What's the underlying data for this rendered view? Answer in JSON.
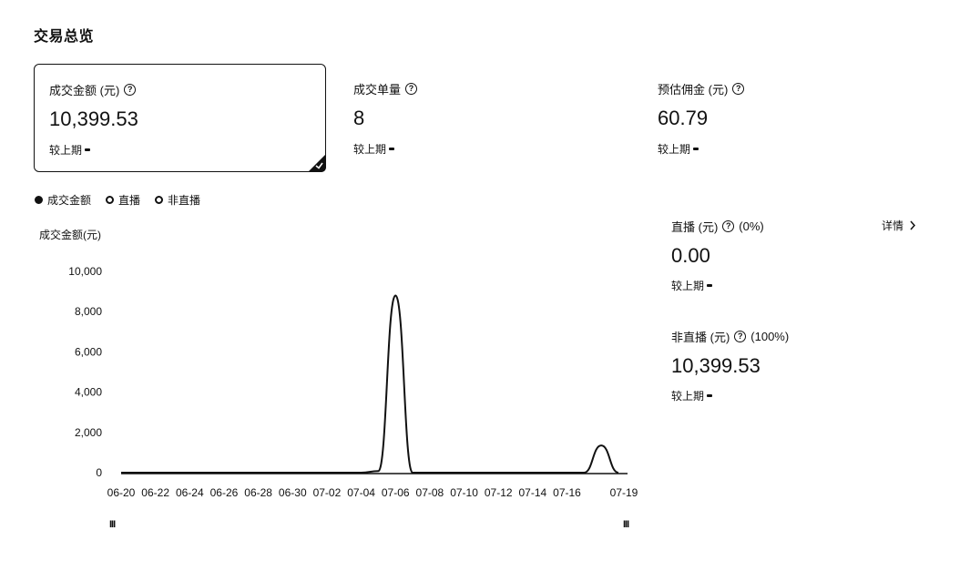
{
  "page_title": "交易总览",
  "metrics": [
    {
      "label": "成交金额 (元)",
      "value": "10,399.53",
      "compare": "较上期",
      "selected": true
    },
    {
      "label": "成交单量",
      "value": "8",
      "compare": "较上期",
      "selected": false
    },
    {
      "label": "预估佣金 (元)",
      "value": "60.79",
      "compare": "较上期",
      "selected": false
    }
  ],
  "help_glyph": "?",
  "legend": [
    {
      "label": "成交金额",
      "filled": true
    },
    {
      "label": "直播",
      "filled": false
    },
    {
      "label": "非直播",
      "filled": false
    }
  ],
  "breakdown": {
    "detail_label": "详情",
    "live": {
      "label": "直播 (元)",
      "percent": "(0%)",
      "value": "0.00",
      "compare": "较上期"
    },
    "non_live": {
      "label": "非直播 (元)",
      "percent": "(100%)",
      "value": "10,399.53",
      "compare": "较上期"
    }
  },
  "slider": {
    "left_handle": "III",
    "right_handle": "III"
  },
  "chart_data": {
    "type": "area",
    "ylabel": "成交金额(元)",
    "ylim": [
      0,
      10000
    ],
    "yticks": [
      "0",
      "2,000",
      "4,000",
      "6,000",
      "8,000",
      "10,000"
    ],
    "xticks": [
      "06-20",
      "06-22",
      "06-24",
      "06-26",
      "06-28",
      "06-30",
      "07-02",
      "07-04",
      "07-06",
      "07-08",
      "07-10",
      "07-12",
      "07-14",
      "07-16",
      "07-19"
    ],
    "x": [
      "06-20",
      "06-21",
      "06-22",
      "06-23",
      "06-24",
      "06-25",
      "06-26",
      "06-27",
      "06-28",
      "06-29",
      "06-30",
      "07-01",
      "07-02",
      "07-03",
      "07-04",
      "07-05",
      "07-06",
      "07-07",
      "07-08",
      "07-09",
      "07-10",
      "07-11",
      "07-12",
      "07-13",
      "07-14",
      "07-15",
      "07-16",
      "07-17",
      "07-18",
      "07-19"
    ],
    "series": [
      {
        "values": [
          0,
          0,
          0,
          0,
          0,
          0,
          0,
          0,
          0,
          0,
          0,
          0,
          0,
          0,
          0,
          80,
          8800,
          0,
          0,
          0,
          0,
          0,
          0,
          0,
          0,
          0,
          0,
          0,
          1350,
          0
        ]
      }
    ],
    "grid": false,
    "legend": "top-left"
  }
}
